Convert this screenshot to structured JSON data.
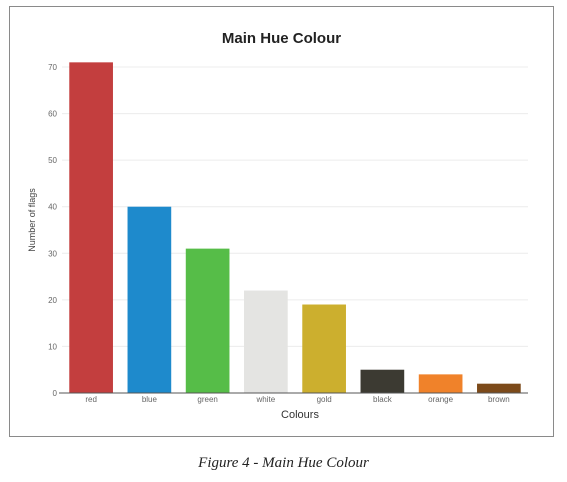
{
  "chart_data": {
    "type": "bar",
    "title": "Main Hue Colour",
    "xlabel": "Colours",
    "ylabel": "Number of flags",
    "categories": [
      "red",
      "blue",
      "green",
      "white",
      "gold",
      "black",
      "orange",
      "brown"
    ],
    "values": [
      71,
      40,
      31,
      22,
      19,
      5,
      4,
      2
    ],
    "colors": [
      "#c33e3e",
      "#1e8acc",
      "#56bd48",
      "#e4e4e2",
      "#ccaf2e",
      "#3c3a32",
      "#f0822a",
      "#7c4a1a"
    ],
    "ylim": [
      0,
      70
    ],
    "yticks": [
      0,
      10,
      20,
      30,
      40,
      50,
      60,
      70
    ],
    "grid": true,
    "legend": "none"
  },
  "caption": "Figure 4 - Main Hue Colour"
}
